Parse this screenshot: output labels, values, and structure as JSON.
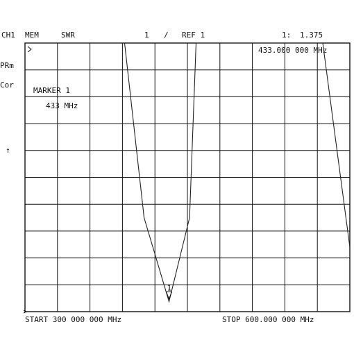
{
  "header": {
    "channel": "CH1",
    "memory": "MEM",
    "format": "SWR",
    "scale": "1",
    "divider": "/",
    "reference": "REF 1",
    "marker_readout_index": "1:",
    "marker_readout_value": "1.375",
    "marker_readout_freq": "433.000 000 MHz"
  },
  "side_annotations": {
    "prm": "PRm",
    "cor": "Cor",
    "ref_arrow": "↑"
  },
  "marker_box": {
    "label": "MARKER 1",
    "freq": "433 MHz"
  },
  "footer": {
    "start": "START  300 000 000 MHz",
    "stop": "STOP  600.000 000 MHz"
  },
  "colors": {
    "trace": "#222222",
    "grid": "#111111",
    "text": "#111111"
  },
  "chart_data": {
    "type": "line",
    "x_unit": "MHz",
    "y_unit": "SWR",
    "xlim": [
      300,
      600
    ],
    "ylim": [
      1.0,
      11.0
    ],
    "grid": true,
    "x_divisions": 10,
    "y_divisions": 10,
    "series": [
      {
        "values_x": [
          300,
          360,
          375,
          392,
          410,
          433,
          452,
          458,
          575,
          600
        ],
        "values_y": [
          11,
          11,
          11,
          11,
          4.5,
          1.375,
          4.5,
          11,
          11,
          3.4
        ]
      }
    ],
    "marker": {
      "x": 433,
      "y": 1.375,
      "label": "1"
    }
  }
}
